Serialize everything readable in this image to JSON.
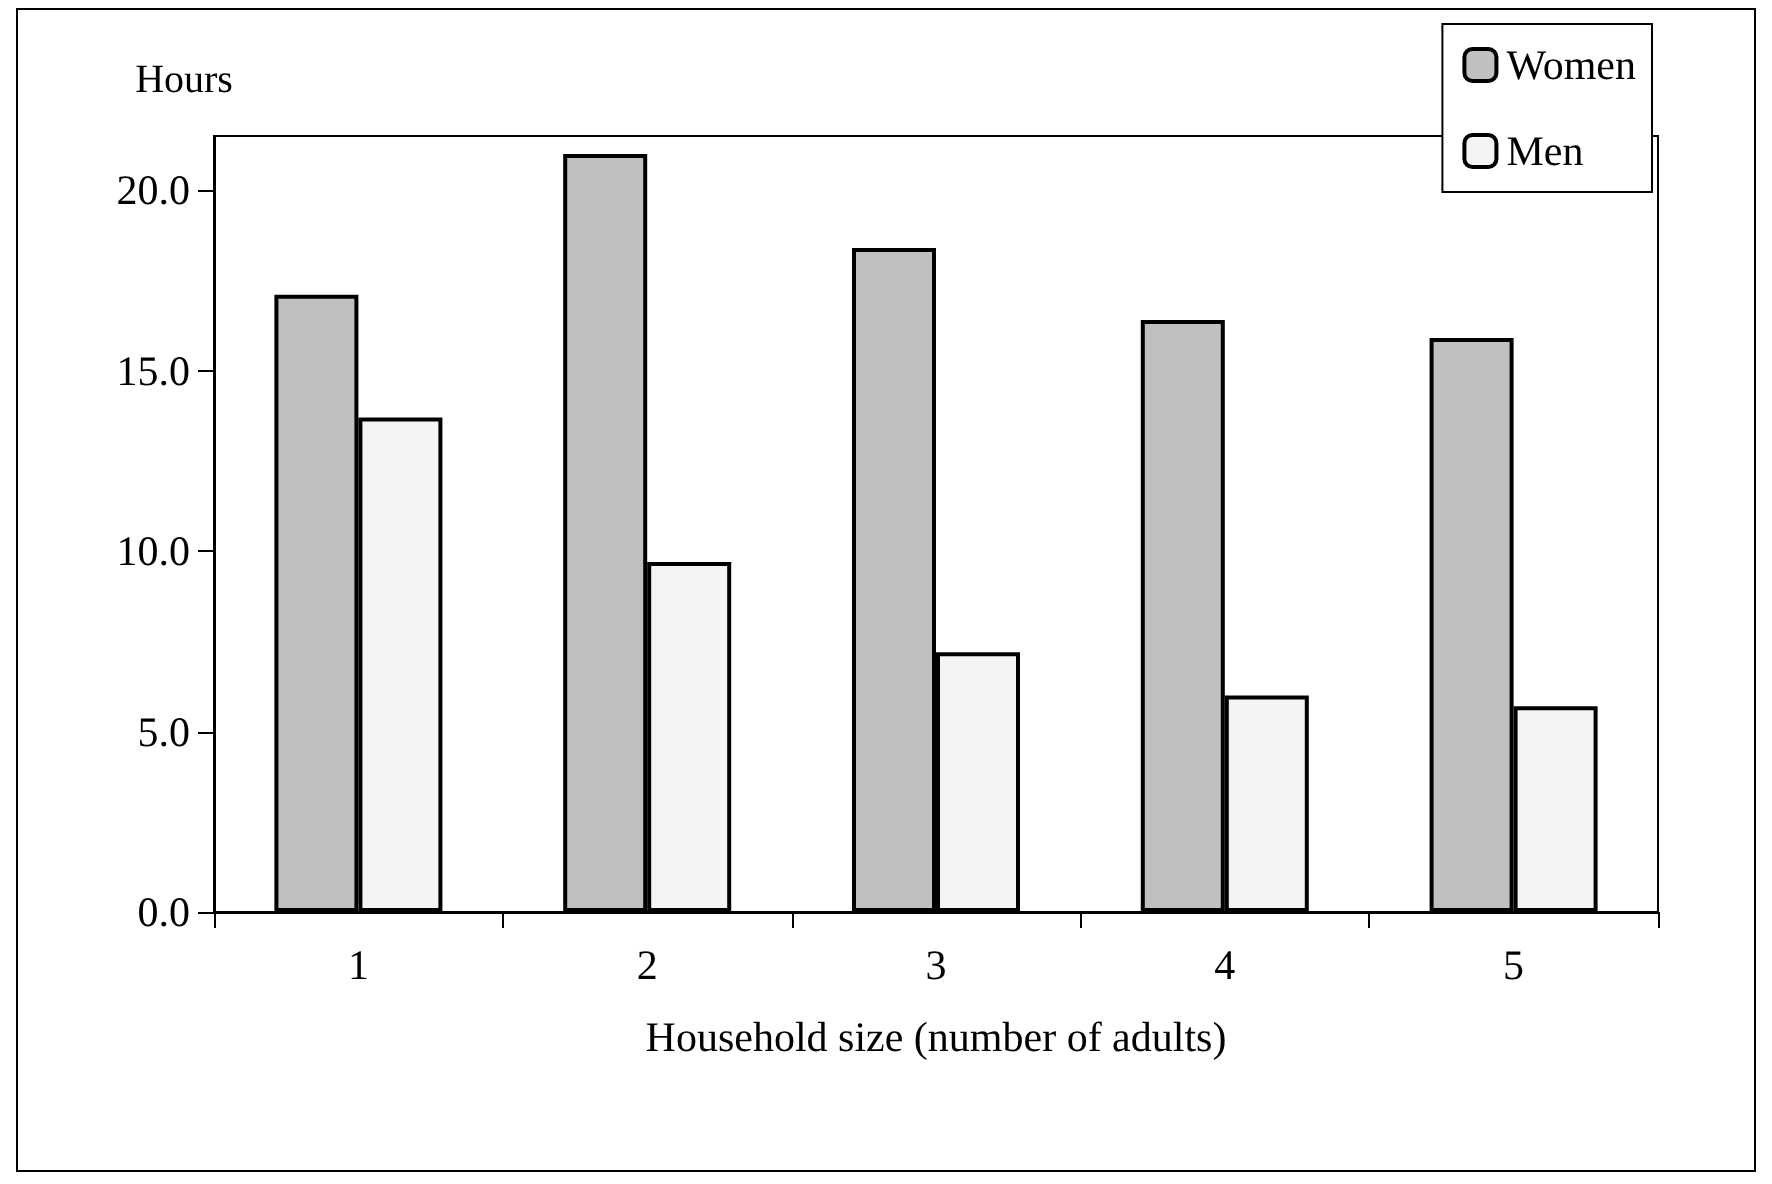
{
  "chart_data": {
    "type": "bar",
    "ylabel": "Hours",
    "xlabel": "Household size (number of adults)",
    "categories": [
      "1",
      "2",
      "3",
      "4",
      "5"
    ],
    "series": [
      {
        "name": "Women",
        "color": "#c0c0c0",
        "values": [
          17.1,
          21.0,
          18.4,
          16.4,
          15.9
        ]
      },
      {
        "name": "Men",
        "color": "#f4f4f4",
        "values": [
          13.7,
          9.7,
          7.2,
          6.0,
          5.7
        ]
      }
    ],
    "ylim": [
      0,
      21.5
    ],
    "yticks": [
      {
        "value": 0,
        "label": "0.0"
      },
      {
        "value": 5,
        "label": "5.0"
      },
      {
        "value": 10,
        "label": "10.0"
      },
      {
        "value": 15,
        "label": "15.0"
      },
      {
        "value": 20,
        "label": "20.0"
      }
    ],
    "grid": false,
    "legend": "top right"
  }
}
